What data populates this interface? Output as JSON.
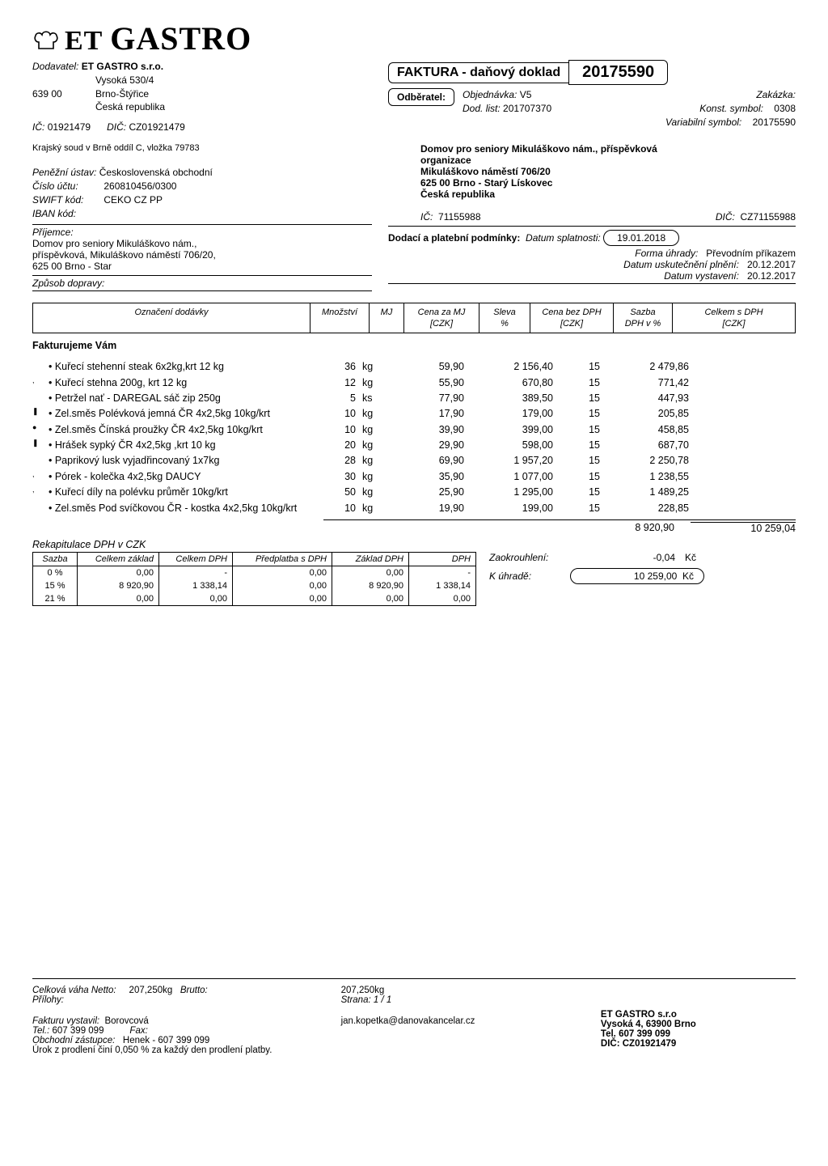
{
  "logo": {
    "text_et": "ET",
    "text_gastro": "GASTRO"
  },
  "dodavatel": {
    "label": "Dodavatel:",
    "name": "ET GASTRO s.r.o.",
    "street": "Vysoká 530/4",
    "zip": "639 00",
    "city": "Brno-Štýřice",
    "country": "Česká republika",
    "ic_label": "IČ:",
    "ic": "01921479",
    "dic_label": "DIČ:",
    "dic": "CZ01921479",
    "court": "Krajský soud v Brně oddíl C, vložka 79783",
    "bank_label": "Peněžní ústav:",
    "bank": "Československá obchodní",
    "acct_label": "Číslo účtu:",
    "acct": "260810456/0300",
    "swift_label": "SWIFT kód:",
    "swift": "CEKO CZ PP",
    "iban_label": "IBAN kód:",
    "prijemce_label": "Příjemce:",
    "prijemce1": "Domov pro seniory Mikuláškovo nám.,",
    "prijemce2": "příspěvková, Mikuláškovo náměstí 706/20,",
    "prijemce3": "625 00  Brno - Star",
    "doprava_label": "Způsob dopravy:"
  },
  "odberatel": {
    "label": "Odběratel:",
    "faktura_title": "FAKTURA - daňový doklad",
    "faktura_num": "20175590",
    "obj_label": "Objednávka:",
    "obj": "V5",
    "zak_label": "Zakázka:",
    "dod_label": "Dod. list:",
    "dod": "201707370",
    "konst_label": "Konst. symbol:",
    "konst": "0308",
    "var_label": "Variabilní symbol:",
    "var": "20175590",
    "name": "Domov pro seniory Mikuláškovo nám., příspěvková",
    "name2": "organizace",
    "street": "Mikuláškovo náměstí 706/20",
    "zipcity": "625 00     Brno - Starý Lískovec",
    "country": "Česká republika",
    "ic_label": "IČ:",
    "ic": "71155988",
    "dic_label": "DIČ:",
    "dic": "CZ71155988",
    "dodaci_label": "Dodací a platební podmínky:",
    "splat_label": "Datum splatnosti:",
    "splat": "19.01.2018",
    "forma_label": "Forma úhrady:",
    "forma": "Převodním příkazem",
    "plneni_label": "Datum uskutečnění plnění:",
    "plneni": "20.12.2017",
    "vyst_label": "Datum vystavení:",
    "vyst": "20.12.2017"
  },
  "cols": {
    "c1": "Označení dodávky",
    "c2": "Množství",
    "c3": "MJ",
    "c4a": "Cena za MJ",
    "c4b": "[CZK]",
    "c5a": "Sleva",
    "c5b": "%",
    "c6a": "Cena bez DPH",
    "c6b": "[CZK]",
    "c7a": "Sazba",
    "c7b": "DPH v %",
    "c8a": "Celkem s DPH",
    "c8b": "[CZK]"
  },
  "faktHead": "Fakturujeme Vám",
  "items": [
    {
      "m": "",
      "n": "Kuřecí stehenní steak 6x2kg,krt 12 kg",
      "q": "36",
      "u": "kg",
      "p": "59,90",
      "bez": "2 156,40",
      "s": "15",
      "t": "2 479,86"
    },
    {
      "m": ",",
      "n": "Kuřecí stehna 200g, krt 12 kg",
      "q": "12",
      "u": "kg",
      "p": "55,90",
      "bez": "670,80",
      "s": "15",
      "t": "771,42"
    },
    {
      "m": "",
      "n": "Petržel nať - DAREGAL sáč zip 250g",
      "q": "5",
      "u": "ks",
      "p": "77,90",
      "bez": "389,50",
      "s": "15",
      "t": "447,93"
    },
    {
      "m": "❚",
      "n": "Zel.směs Polévková jemná ČR 4x2,5kg 10kg/krt",
      "q": "10",
      "u": "kg",
      "p": "17,90",
      "bez": "179,00",
      "s": "15",
      "t": "205,85"
    },
    {
      "m": "●",
      "n": "Zel.směs Čínská proužky ČR 4x2,5kg 10kg/krt",
      "q": "10",
      "u": "kg",
      "p": "39,90",
      "bez": "399,00",
      "s": "15",
      "t": "458,85"
    },
    {
      "m": "❚",
      "n": "Hrášek sypký ČR 4x2,5kg ,krt 10 kg",
      "q": "20",
      "u": "kg",
      "p": "29,90",
      "bez": "598,00",
      "s": "15",
      "t": "687,70"
    },
    {
      "m": "",
      "n": "Paprikový lusk vyjadřincovaný 1x7kg",
      "q": "28",
      "u": "kg",
      "p": "69,90",
      "bez": "1 957,20",
      "s": "15",
      "t": "2 250,78"
    },
    {
      "m": ",",
      "n": "Pórek - kolečka 4x2,5kg DAUCY",
      "q": "30",
      "u": "kg",
      "p": "35,90",
      "bez": "1 077,00",
      "s": "15",
      "t": "1 238,55"
    },
    {
      "m": ",",
      "n": "Kuřecí díly na polévku průměr 10kg/krt",
      "q": "50",
      "u": "kg",
      "p": "25,90",
      "bez": "1 295,00",
      "s": "15",
      "t": "1 489,25"
    },
    {
      "m": "",
      "n": "Zel.směs Pod svíčkovou ČR - kostka 4x2,5kg 10kg/krt",
      "q": "10",
      "u": "kg",
      "p": "19,90",
      "bez": "199,00",
      "s": "15",
      "t": "228,85"
    }
  ],
  "subtotal": {
    "bez": "8 920,90",
    "tot": "10 259,04"
  },
  "rekap": {
    "title": "Rekapitulace DPH v  CZK",
    "head": [
      "Sazba",
      "Celkem základ",
      "Celkem DPH",
      "Předplatba s DPH",
      "Základ DPH",
      "DPH"
    ],
    "rows": [
      [
        "0 %",
        "0,00",
        "-",
        "0,00",
        "0,00",
        "-"
      ],
      [
        "15 %",
        "8 920,90",
        "1 338,14",
        "0,00",
        "8 920,90",
        "1 338,14"
      ],
      [
        "21 %",
        "0,00",
        "0,00",
        "0,00",
        "0,00",
        "0,00"
      ]
    ],
    "zaok_label": "Zaokrouhlení:",
    "zaok": "-0,04",
    "zaok_cur": "Kč",
    "kuh_label": "K úhradě:",
    "kuh": "10 259,00",
    "kuh_cur": "Kč"
  },
  "footer": {
    "netto_label": "Celková váha Netto:",
    "netto": "207,250kg",
    "brutto_label": "Brutto:",
    "brutto": "207,250kg",
    "prilohy": "Přílohy:",
    "strana": "Strana: 1 / 1",
    "vystavil_label": "Fakturu vystavil:",
    "vystavil": "Borovcová",
    "tel_label": "Tel.:",
    "tel": "607 399 099",
    "fax_label": "Fax:",
    "obch_label": "Obchodní zástupce:",
    "obch": "Henek - 607 399 099",
    "urok": "Úrok z prodlení činí  0,050 % za každý den prodlení platby.",
    "email": "jan.kopetka@danovakancelar.cz",
    "co1": "ET GASTRO s.r.o",
    "co2": "Vysoká 4, 63900 Brno",
    "co3": "Tel. 607 399 099",
    "co4": "DIČ: CZ01921479"
  }
}
